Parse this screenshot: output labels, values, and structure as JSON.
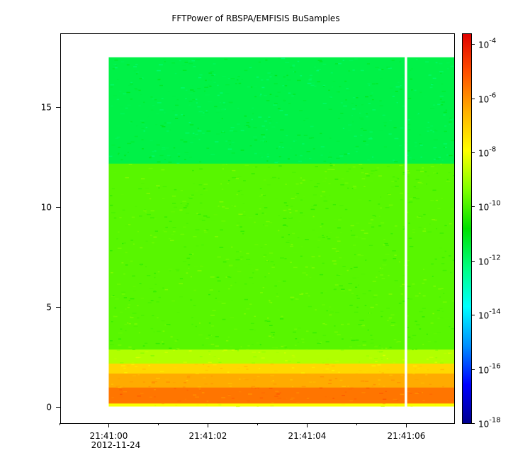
{
  "chart_data": {
    "type": "heatmap",
    "title": "FFTPower of RBSPA/EMFISIS  BuSamples",
    "xlabel": "",
    "ylabel": "",
    "y_axis": {
      "range": [
        -0.8,
        18.7
      ],
      "ticks": [
        0,
        5,
        10,
        15
      ],
      "tick_labels": [
        "0",
        "5",
        "10",
        "15"
      ]
    },
    "x_axis": {
      "range_seconds": [
        -0.98,
        6.98
      ],
      "ticks_seconds": [
        0,
        2,
        4,
        6
      ],
      "tick_labels": [
        "21:41:00",
        "21:41:02",
        "21:41:04",
        "21:41:06"
      ],
      "minor_ticks_seconds": [
        -1,
        1,
        3,
        5
      ],
      "date_label": "2012-11-24"
    },
    "colorbar": {
      "scale": "log",
      "range_exponent": [
        -18,
        -3.6
      ],
      "ticks_exponent": [
        -18,
        -16,
        -14,
        -12,
        -10,
        -8,
        -6,
        -4
      ],
      "tick_labels": [
        {
          "base": "10",
          "exp": "-18"
        },
        {
          "base": "10",
          "exp": "-16"
        },
        {
          "base": "10",
          "exp": "-14"
        },
        {
          "base": "10",
          "exp": "-12"
        },
        {
          "base": "10",
          "exp": "-10"
        },
        {
          "base": "10",
          "exp": "-8"
        },
        {
          "base": "10",
          "exp": "-6"
        },
        {
          "base": "10",
          "exp": "-4"
        }
      ],
      "colors": [
        "#00008f",
        "#0000ff",
        "#0090ff",
        "#00ffff",
        "#00ff80",
        "#00e000",
        "#7fff00",
        "#ffff00",
        "#ffb000",
        "#ff5000",
        "#e00000"
      ]
    },
    "data_extent": {
      "x_seconds": [
        0,
        6.98
      ],
      "y": [
        0.05,
        17.5
      ]
    },
    "gap_seconds": [
      5.98,
      6.03
    ],
    "bands": [
      {
        "y": [
          0.05,
          0.2
        ],
        "log10_power": -8.0
      },
      {
        "y": [
          0.2,
          1.0
        ],
        "log10_power": -5.6
      },
      {
        "y": [
          1.0,
          1.7
        ],
        "log10_power": -6.4
      },
      {
        "y": [
          1.7,
          2.2
        ],
        "log10_power": -7.2
      },
      {
        "y": [
          2.2,
          2.9
        ],
        "log10_power": -8.8
      },
      {
        "y": [
          2.9,
          12.2
        ],
        "log10_power": -9.8
      },
      {
        "y": [
          12.2,
          17.5
        ],
        "log10_power": -11.6
      }
    ]
  }
}
